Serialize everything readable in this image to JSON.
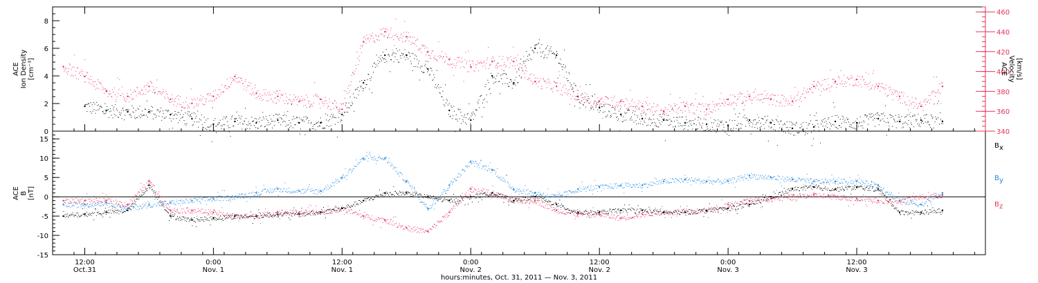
{
  "chart_data": [
    {
      "type": "scatter",
      "panel": "top",
      "ylabel_left": [
        "ACE",
        "Ion Density",
        "[cm⁻³]"
      ],
      "ylabel_right": [
        "ACE",
        "Velocity",
        "[km/s]"
      ],
      "ylim_left": [
        0,
        9
      ],
      "ylim_right": [
        340,
        465
      ],
      "yticks_left": [
        0,
        2,
        4,
        6,
        8
      ],
      "yticks_right": [
        340,
        360,
        380,
        400,
        420,
        440,
        460
      ],
      "xlim": [
        -3,
        84
      ],
      "grid": false,
      "series": [
        {
          "color": "#000000",
          "axis": "left",
          "x": [
            0,
            2,
            4,
            6,
            8,
            10,
            12,
            14,
            16,
            18,
            20,
            22,
            24,
            26,
            28,
            30,
            32,
            34,
            36,
            38,
            40,
            42,
            44,
            46,
            48,
            50,
            52,
            54,
            56,
            58,
            60,
            62,
            64,
            66,
            68,
            70,
            72,
            74,
            76,
            78,
            80
          ],
          "y": [
            1.8,
            1.5,
            1.4,
            1.4,
            1.2,
            0.9,
            0.5,
            0.7,
            0.6,
            0.8,
            0.6,
            0.6,
            1.2,
            3.5,
            5.5,
            5.5,
            4.5,
            1.5,
            0.8,
            4.0,
            3.5,
            6.0,
            5.5,
            2.5,
            1.7,
            1.2,
            0.9,
            0.8,
            0.6,
            0.5,
            0.4,
            0.8,
            0.6,
            0.2,
            0.3,
            0.7,
            0.6,
            0.9,
            0.7,
            0.8,
            0.7
          ]
        },
        {
          "color": "#e8305a",
          "axis": "right",
          "x": [
            -2,
            0,
            2,
            4,
            6,
            8,
            10,
            12,
            14,
            16,
            18,
            20,
            22,
            24,
            26,
            28,
            30,
            32,
            34,
            36,
            38,
            40,
            42,
            44,
            46,
            48,
            50,
            52,
            54,
            56,
            58,
            60,
            62,
            64,
            66,
            68,
            70,
            72,
            74,
            76,
            78,
            80
          ],
          "y": [
            405,
            395,
            380,
            375,
            385,
            372,
            368,
            375,
            395,
            378,
            375,
            370,
            372,
            362,
            430,
            440,
            435,
            420,
            412,
            405,
            410,
            410,
            390,
            385,
            375,
            370,
            370,
            365,
            360,
            365,
            362,
            372,
            375,
            372,
            370,
            385,
            390,
            392,
            385,
            375,
            365,
            385
          ]
        }
      ]
    },
    {
      "type": "scatter",
      "panel": "bottom",
      "ylabel_left": [
        "ACE",
        "B",
        "[nT]"
      ],
      "ylim": [
        -15,
        17
      ],
      "yticks": [
        -15,
        -10,
        -5,
        0,
        5,
        10,
        15
      ],
      "xlim": [
        -3,
        84
      ],
      "grid": false,
      "series": [
        {
          "name": "Bx",
          "color": "#000000",
          "x": [
            -2,
            0,
            2,
            4,
            6,
            8,
            10,
            12,
            14,
            16,
            18,
            20,
            22,
            24,
            26,
            28,
            30,
            32,
            34,
            36,
            38,
            40,
            42,
            44,
            46,
            48,
            50,
            52,
            54,
            56,
            58,
            60,
            62,
            64,
            66,
            68,
            70,
            72,
            74,
            76,
            78,
            80
          ],
          "y": [
            -5,
            -4.5,
            -4,
            -3.5,
            3,
            -5,
            -6,
            -5.5,
            -5,
            -5,
            -4.5,
            -4.5,
            -4,
            -3,
            -1,
            1,
            1,
            0,
            -1,
            0,
            1,
            -1,
            0,
            -2,
            -4,
            -4,
            -3.5,
            -3.5,
            -4,
            -4,
            -3.5,
            -3,
            -2,
            0,
            2,
            2.5,
            2,
            2.5,
            2,
            -4,
            -4,
            -3.5
          ]
        },
        {
          "name": "By",
          "color": "#1e88e5",
          "x": [
            -2,
            0,
            2,
            4,
            6,
            8,
            10,
            12,
            14,
            16,
            18,
            20,
            22,
            24,
            26,
            28,
            30,
            32,
            34,
            36,
            38,
            40,
            42,
            44,
            46,
            48,
            50,
            52,
            54,
            56,
            58,
            60,
            62,
            64,
            66,
            68,
            70,
            72,
            74,
            76,
            78,
            80
          ],
          "y": [
            -2,
            -2,
            -1.5,
            -3,
            -2,
            -1.5,
            -1,
            -0.5,
            0,
            1,
            2,
            1.5,
            1.5,
            5,
            10,
            10,
            4,
            -3,
            3,
            9,
            7,
            2,
            1,
            0,
            2,
            2.5,
            3,
            3,
            4,
            4.5,
            4,
            4,
            5.5,
            5,
            4.5,
            4,
            4,
            4,
            3,
            -1,
            -2,
            1
          ]
        },
        {
          "name": "Bz",
          "color": "#e8305a",
          "x": [
            -2,
            0,
            2,
            4,
            6,
            8,
            10,
            12,
            14,
            16,
            18,
            20,
            22,
            24,
            26,
            28,
            30,
            32,
            34,
            36,
            38,
            40,
            42,
            44,
            46,
            48,
            50,
            52,
            54,
            56,
            58,
            60,
            62,
            64,
            66,
            68,
            70,
            72,
            74,
            76,
            78,
            80
          ],
          "y": [
            -1,
            -1,
            -1,
            -2,
            4,
            -3.5,
            -3.5,
            -4,
            -5,
            -5,
            -4,
            -4,
            -4,
            -3,
            -5,
            -6,
            -8,
            -9,
            -4,
            2,
            1,
            -1,
            -1,
            -3.5,
            -4.5,
            -4.5,
            -5.5,
            -4.5,
            -4,
            -4,
            -3.5,
            -2,
            -1,
            -0.5,
            0,
            0.5,
            0,
            -0.5,
            -1,
            -1,
            0,
            0.5
          ]
        }
      ]
    }
  ],
  "x_axis": {
    "ticks": [
      {
        "x": 0,
        "time": "12:00",
        "date": "Oct.31"
      },
      {
        "x": 12,
        "time": "0:00",
        "date": "Nov. 1"
      },
      {
        "x": 24,
        "time": "12:00",
        "date": "Nov. 1"
      },
      {
        "x": 36,
        "time": "0:00",
        "date": "Nov. 2"
      },
      {
        "x": 48,
        "time": "12:00",
        "date": "Nov. 2"
      },
      {
        "x": 60,
        "time": "0:00",
        "date": "Nov. 3"
      },
      {
        "x": 72,
        "time": "12:00",
        "date": "Nov. 3"
      }
    ],
    "title": "hours:minutes, Oct. 31, 2011 — Nov.  3, 2011"
  },
  "legend": {
    "bx": "B",
    "bx_sub": "x",
    "by": "B",
    "by_sub": "y",
    "bz": "B",
    "bz_sub": "z"
  },
  "colors": {
    "density": "#000000",
    "velocity": "#e8305a",
    "bx": "#000000",
    "by": "#1e88e5",
    "bz": "#e8305a",
    "velocity_axis": "#e8305a"
  }
}
